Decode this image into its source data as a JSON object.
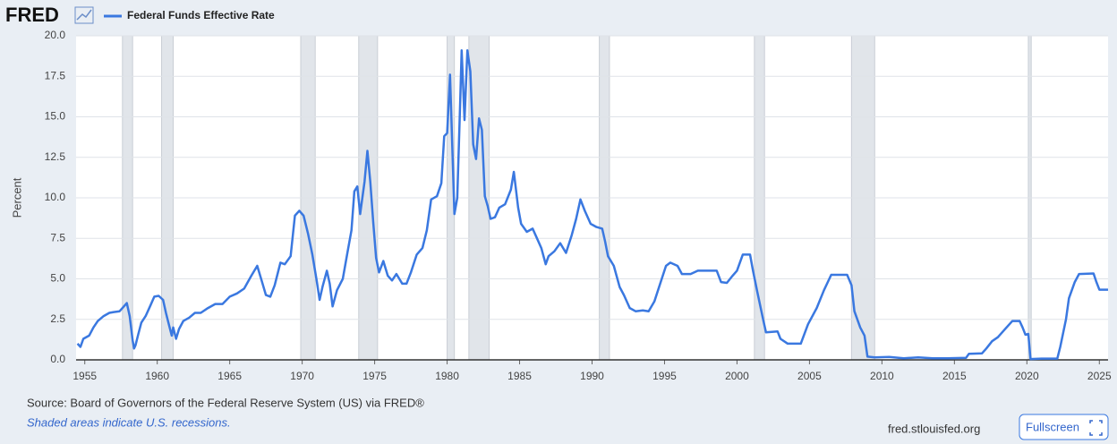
{
  "page": {
    "logo": "FRED",
    "source": "Source: Board of Governors of the Federal Reserve System (US) via FRED®",
    "note": "Shaded areas indicate U.S. recessions.",
    "site": "fred.stlouisfed.org",
    "button": "Fullscreen"
  },
  "chart_data": {
    "type": "line",
    "y_label": "Percent",
    "grid": true,
    "x": [
      1954.5,
      1954.7,
      1954.9,
      1955.3,
      1955.6,
      1955.9,
      1956.3,
      1956.7,
      1957.0,
      1957.4,
      1957.7,
      1957.9,
      1958.1,
      1958.3,
      1958.4,
      1958.5,
      1958.7,
      1958.9,
      1959.2,
      1959.5,
      1959.8,
      1960.1,
      1960.4,
      1960.6,
      1960.8,
      1961.0,
      1961.1,
      1961.3,
      1961.5,
      1961.8,
      1962.2,
      1962.6,
      1963.0,
      1963.5,
      1964.0,
      1964.5,
      1965.0,
      1965.5,
      1966.0,
      1966.5,
      1966.9,
      1967.2,
      1967.5,
      1967.8,
      1968.1,
      1968.5,
      1968.8,
      1969.2,
      1969.5,
      1969.8,
      1970.1,
      1970.4,
      1970.7,
      1971.0,
      1971.2,
      1971.4,
      1971.7,
      1971.9,
      1972.1,
      1972.4,
      1972.8,
      1973.1,
      1973.4,
      1973.6,
      1973.8,
      1974.0,
      1974.3,
      1974.5,
      1974.7,
      1974.9,
      1975.1,
      1975.3,
      1975.6,
      1975.9,
      1976.2,
      1976.5,
      1976.9,
      1977.2,
      1977.5,
      1977.9,
      1978.3,
      1978.6,
      1978.9,
      1979.3,
      1979.6,
      1979.8,
      1980.0,
      1980.2,
      1980.4,
      1980.5,
      1980.7,
      1980.9,
      1981.0,
      1981.2,
      1981.4,
      1981.6,
      1981.8,
      1982.0,
      1982.2,
      1982.4,
      1982.6,
      1982.8,
      1983.0,
      1983.3,
      1983.6,
      1984.0,
      1984.4,
      1984.6,
      1984.9,
      1985.1,
      1985.5,
      1985.9,
      1986.2,
      1986.5,
      1986.8,
      1987.0,
      1987.4,
      1987.8,
      1988.2,
      1988.6,
      1988.9,
      1989.2,
      1989.5,
      1989.9,
      1990.3,
      1990.7,
      1990.9,
      1991.1,
      1991.5,
      1991.9,
      1992.2,
      1992.6,
      1993.0,
      1993.5,
      1993.9,
      1994.3,
      1994.7,
      1995.1,
      1995.4,
      1995.9,
      1996.2,
      1996.8,
      1997.3,
      1998.0,
      1998.6,
      1998.9,
      1999.3,
      1999.7,
      2000.0,
      2000.4,
      2000.9,
      2001.1,
      2001.4,
      2001.8,
      2002.0,
      2002.8,
      2003.0,
      2003.5,
      2004.4,
      2004.9,
      2005.5,
      2006.0,
      2006.5,
      2007.6,
      2007.9,
      2008.1,
      2008.5,
      2008.8,
      2009.0,
      2009.5,
      2010.5,
      2011.5,
      2012.5,
      2013.5,
      2014.5,
      2015.8,
      2016.0,
      2016.9,
      2017.2,
      2017.6,
      2018.0,
      2018.5,
      2019.0,
      2019.5,
      2019.7,
      2019.9,
      2020.1,
      2020.25,
      2021.0,
      2022.1,
      2022.3,
      2022.7,
      2022.9,
      2023.3,
      2023.6,
      2024.6,
      2024.8,
      2025.0,
      2025.6
    ],
    "series": [
      {
        "name": "Federal Funds Effective Rate",
        "color": "#3a78e0",
        "values": [
          1.0,
          0.8,
          1.3,
          1.5,
          2.0,
          2.4,
          2.7,
          2.9,
          2.95,
          3.0,
          3.3,
          3.5,
          2.7,
          1.2,
          0.7,
          0.9,
          1.6,
          2.3,
          2.7,
          3.3,
          3.9,
          3.95,
          3.7,
          2.9,
          2.2,
          1.5,
          2.0,
          1.3,
          1.9,
          2.4,
          2.6,
          2.9,
          2.9,
          3.2,
          3.45,
          3.45,
          3.9,
          4.1,
          4.4,
          5.2,
          5.8,
          4.9,
          4.0,
          3.9,
          4.6,
          6.0,
          5.9,
          6.4,
          8.9,
          9.2,
          8.9,
          7.8,
          6.5,
          4.9,
          3.7,
          4.5,
          5.5,
          4.7,
          3.3,
          4.3,
          5.0,
          6.5,
          8.0,
          10.4,
          10.7,
          9.0,
          11.0,
          12.9,
          11.0,
          8.5,
          6.3,
          5.4,
          6.1,
          5.2,
          4.9,
          5.3,
          4.7,
          4.7,
          5.4,
          6.5,
          6.9,
          8.0,
          9.9,
          10.1,
          10.9,
          13.8,
          14.0,
          17.6,
          12.0,
          9.0,
          10.0,
          15.8,
          19.1,
          14.8,
          19.1,
          17.8,
          13.3,
          12.4,
          14.9,
          14.2,
          10.1,
          9.5,
          8.7,
          8.8,
          9.4,
          9.6,
          10.5,
          11.6,
          9.4,
          8.4,
          7.9,
          8.1,
          7.5,
          6.9,
          5.9,
          6.4,
          6.7,
          7.2,
          6.6,
          7.7,
          8.7,
          9.9,
          9.2,
          8.4,
          8.2,
          8.1,
          7.3,
          6.4,
          5.8,
          4.5,
          4.0,
          3.2,
          3.0,
          3.05,
          3.0,
          3.6,
          4.7,
          5.8,
          6.0,
          5.8,
          5.3,
          5.3,
          5.5,
          5.5,
          5.5,
          4.8,
          4.75,
          5.2,
          5.5,
          6.5,
          6.5,
          5.5,
          4.2,
          2.5,
          1.7,
          1.75,
          1.3,
          1.0,
          1.0,
          2.2,
          3.2,
          4.3,
          5.25,
          5.25,
          4.6,
          3.0,
          2.0,
          1.5,
          0.2,
          0.15,
          0.18,
          0.1,
          0.15,
          0.1,
          0.1,
          0.12,
          0.37,
          0.4,
          0.7,
          1.15,
          1.4,
          1.9,
          2.4,
          2.4,
          2.0,
          1.55,
          1.6,
          0.05,
          0.08,
          0.08,
          0.8,
          2.5,
          3.8,
          4.8,
          5.3,
          5.33,
          4.8,
          4.33,
          4.33
        ]
      }
    ],
    "recessions": [
      [
        1957.6,
        1958.3
      ],
      [
        1960.3,
        1961.1
      ],
      [
        1969.9,
        1970.9
      ],
      [
        1973.9,
        1975.2
      ],
      [
        1980.0,
        1980.5
      ],
      [
        1981.5,
        1982.9
      ],
      [
        1990.5,
        1991.2
      ],
      [
        2001.2,
        2001.9
      ],
      [
        2007.9,
        2009.5
      ],
      [
        2020.1,
        2020.3
      ]
    ],
    "xlim": [
      1954.4,
      2025.6
    ],
    "ylim": [
      0,
      20
    ],
    "xticks": [
      1955,
      1960,
      1965,
      1970,
      1975,
      1980,
      1985,
      1990,
      1995,
      2000,
      2005,
      2010,
      2015,
      2020,
      2025
    ],
    "yticks": [
      {
        "value": 0,
        "label": "0.0"
      },
      2.5,
      {
        "value": 5,
        "label": "5.0"
      },
      7.5,
      {
        "value": 10,
        "label": "10.0"
      },
      12.5,
      {
        "value": 15,
        "label": "15.0"
      },
      17.5,
      {
        "value": 20,
        "label": "20.0"
      }
    ]
  }
}
